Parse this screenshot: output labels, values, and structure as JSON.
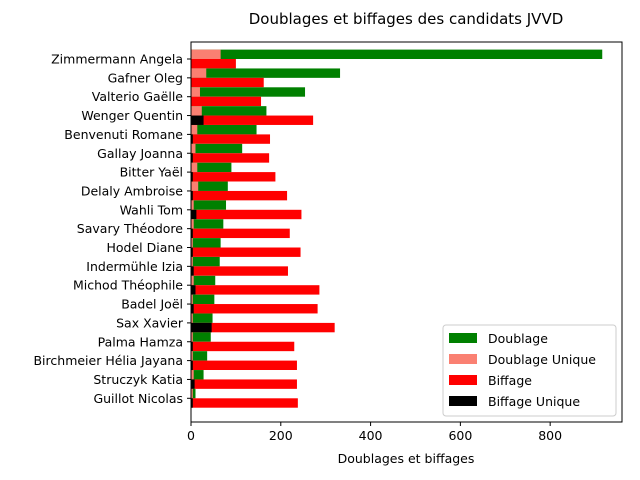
{
  "chart_data": {
    "type": "bar",
    "orientation": "horizontal",
    "title": "Doublages et biffages des candidats JVVD",
    "xlabel": "Doublages et biffages",
    "ylabel": "",
    "xlim": [
      0,
      960
    ],
    "xticks": [
      0,
      200,
      400,
      600,
      800
    ],
    "grid": false,
    "legend_position": "lower-right",
    "categories": [
      "Zimmermann Angela",
      "Gafner Oleg",
      "Valterio Gaëlle",
      "Wenger Quentin",
      "Benvenuti Romane",
      "Gallay Joanna",
      "Bitter Yaël",
      "Delaly Ambroise",
      "Wahli Tom",
      "Savary Théodore",
      "Hodel Diane",
      "Indermühle Izia",
      "Michod Théophile",
      "Badel Joël",
      "Sax Xavier",
      "Palma Hamza",
      "Birchmeier Hélia Jayana",
      "Struczyk Katia",
      "Guillot Nicolas"
    ],
    "series": [
      {
        "name": "Doublage",
        "color": "#008000",
        "values": [
          916,
          332,
          254,
          168,
          146,
          114,
          90,
          82,
          78,
          72,
          66,
          64,
          54,
          52,
          48,
          44,
          36,
          28,
          10
        ]
      },
      {
        "name": "Doublage Unique",
        "color": "#fa8072",
        "values": [
          66,
          34,
          20,
          24,
          14,
          10,
          14,
          16,
          6,
          6,
          4,
          4,
          6,
          4,
          4,
          4,
          4,
          6,
          4
        ]
      },
      {
        "name": "Biffage",
        "color": "#ff0000",
        "values": [
          100,
          162,
          156,
          272,
          176,
          174,
          188,
          214,
          246,
          220,
          244,
          216,
          286,
          282,
          320,
          230,
          236,
          236,
          238
        ]
      },
      {
        "name": "Biffage Unique",
        "color": "#000000",
        "values": [
          0,
          0,
          0,
          28,
          4,
          4,
          4,
          4,
          12,
          4,
          4,
          6,
          10,
          6,
          46,
          4,
          4,
          8,
          4
        ]
      }
    ]
  }
}
